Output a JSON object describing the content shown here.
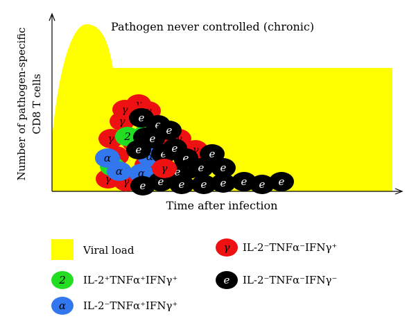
{
  "title": "Pathogen never controlled (chronic)",
  "y_axis_label_line1": "Number of pathogen-specific",
  "y_axis_label_line2": "CD8 T cells",
  "x_axis_label": "Time after infection",
  "colors": {
    "viral_load": "#ffff00",
    "il2_pos": "#22dd22",
    "tnf_pos": "#3377ee",
    "ifn_only": "#ee1111",
    "exhausted": "#000000"
  },
  "cell_symbols": {
    "il2_pos": "2",
    "tnf_pos": "α",
    "ifn_only": "γ",
    "exhausted": "e"
  },
  "legend": {
    "viral_load": "Viral load",
    "ifn_only": "IL-2⁻TNFα⁻IFNγ⁺",
    "il2_pos": "IL-2⁺TNFα⁺IFNγ⁺",
    "exhausted": "IL-2⁻TNFα⁻IFNγ⁻",
    "tnf_pos": "IL-2⁻TNFα⁺IFNγ⁺"
  }
}
